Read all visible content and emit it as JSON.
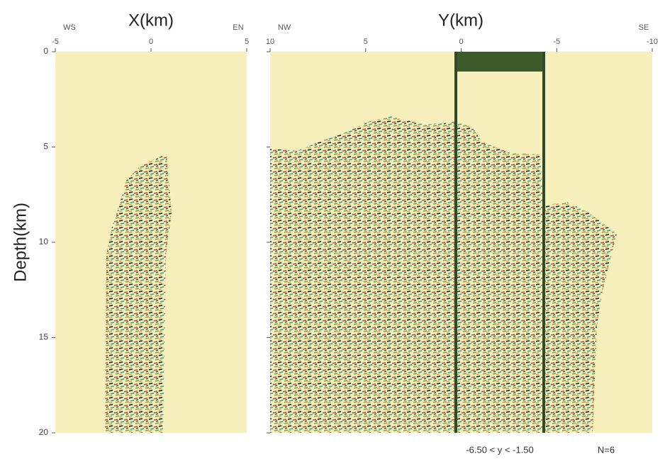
{
  "chart_data": [
    {
      "type": "image",
      "title": "X(km)",
      "y_label": "Depth(km)",
      "xlim": [
        -5,
        5
      ],
      "xticks": [
        -5,
        0,
        5
      ],
      "x_end_labels": [
        "WS",
        "EN"
      ],
      "ylim": [
        0,
        20
      ],
      "yticks": [
        0,
        5,
        10,
        15,
        20
      ],
      "background": "#f7f0bc"
    },
    {
      "type": "image",
      "title": "Y(km)",
      "xlim": [
        10,
        -10
      ],
      "xticks": [
        10,
        5,
        0,
        -5,
        -10
      ],
      "x_end_labels": [
        "NW",
        "SE"
      ],
      "ylim": [
        0,
        20
      ],
      "yticks": [
        0,
        5,
        10,
        15,
        20
      ],
      "background": "#f7f0bc",
      "annotations": [
        "-6.50 < y < -1.50",
        "N=6"
      ]
    }
  ]
}
